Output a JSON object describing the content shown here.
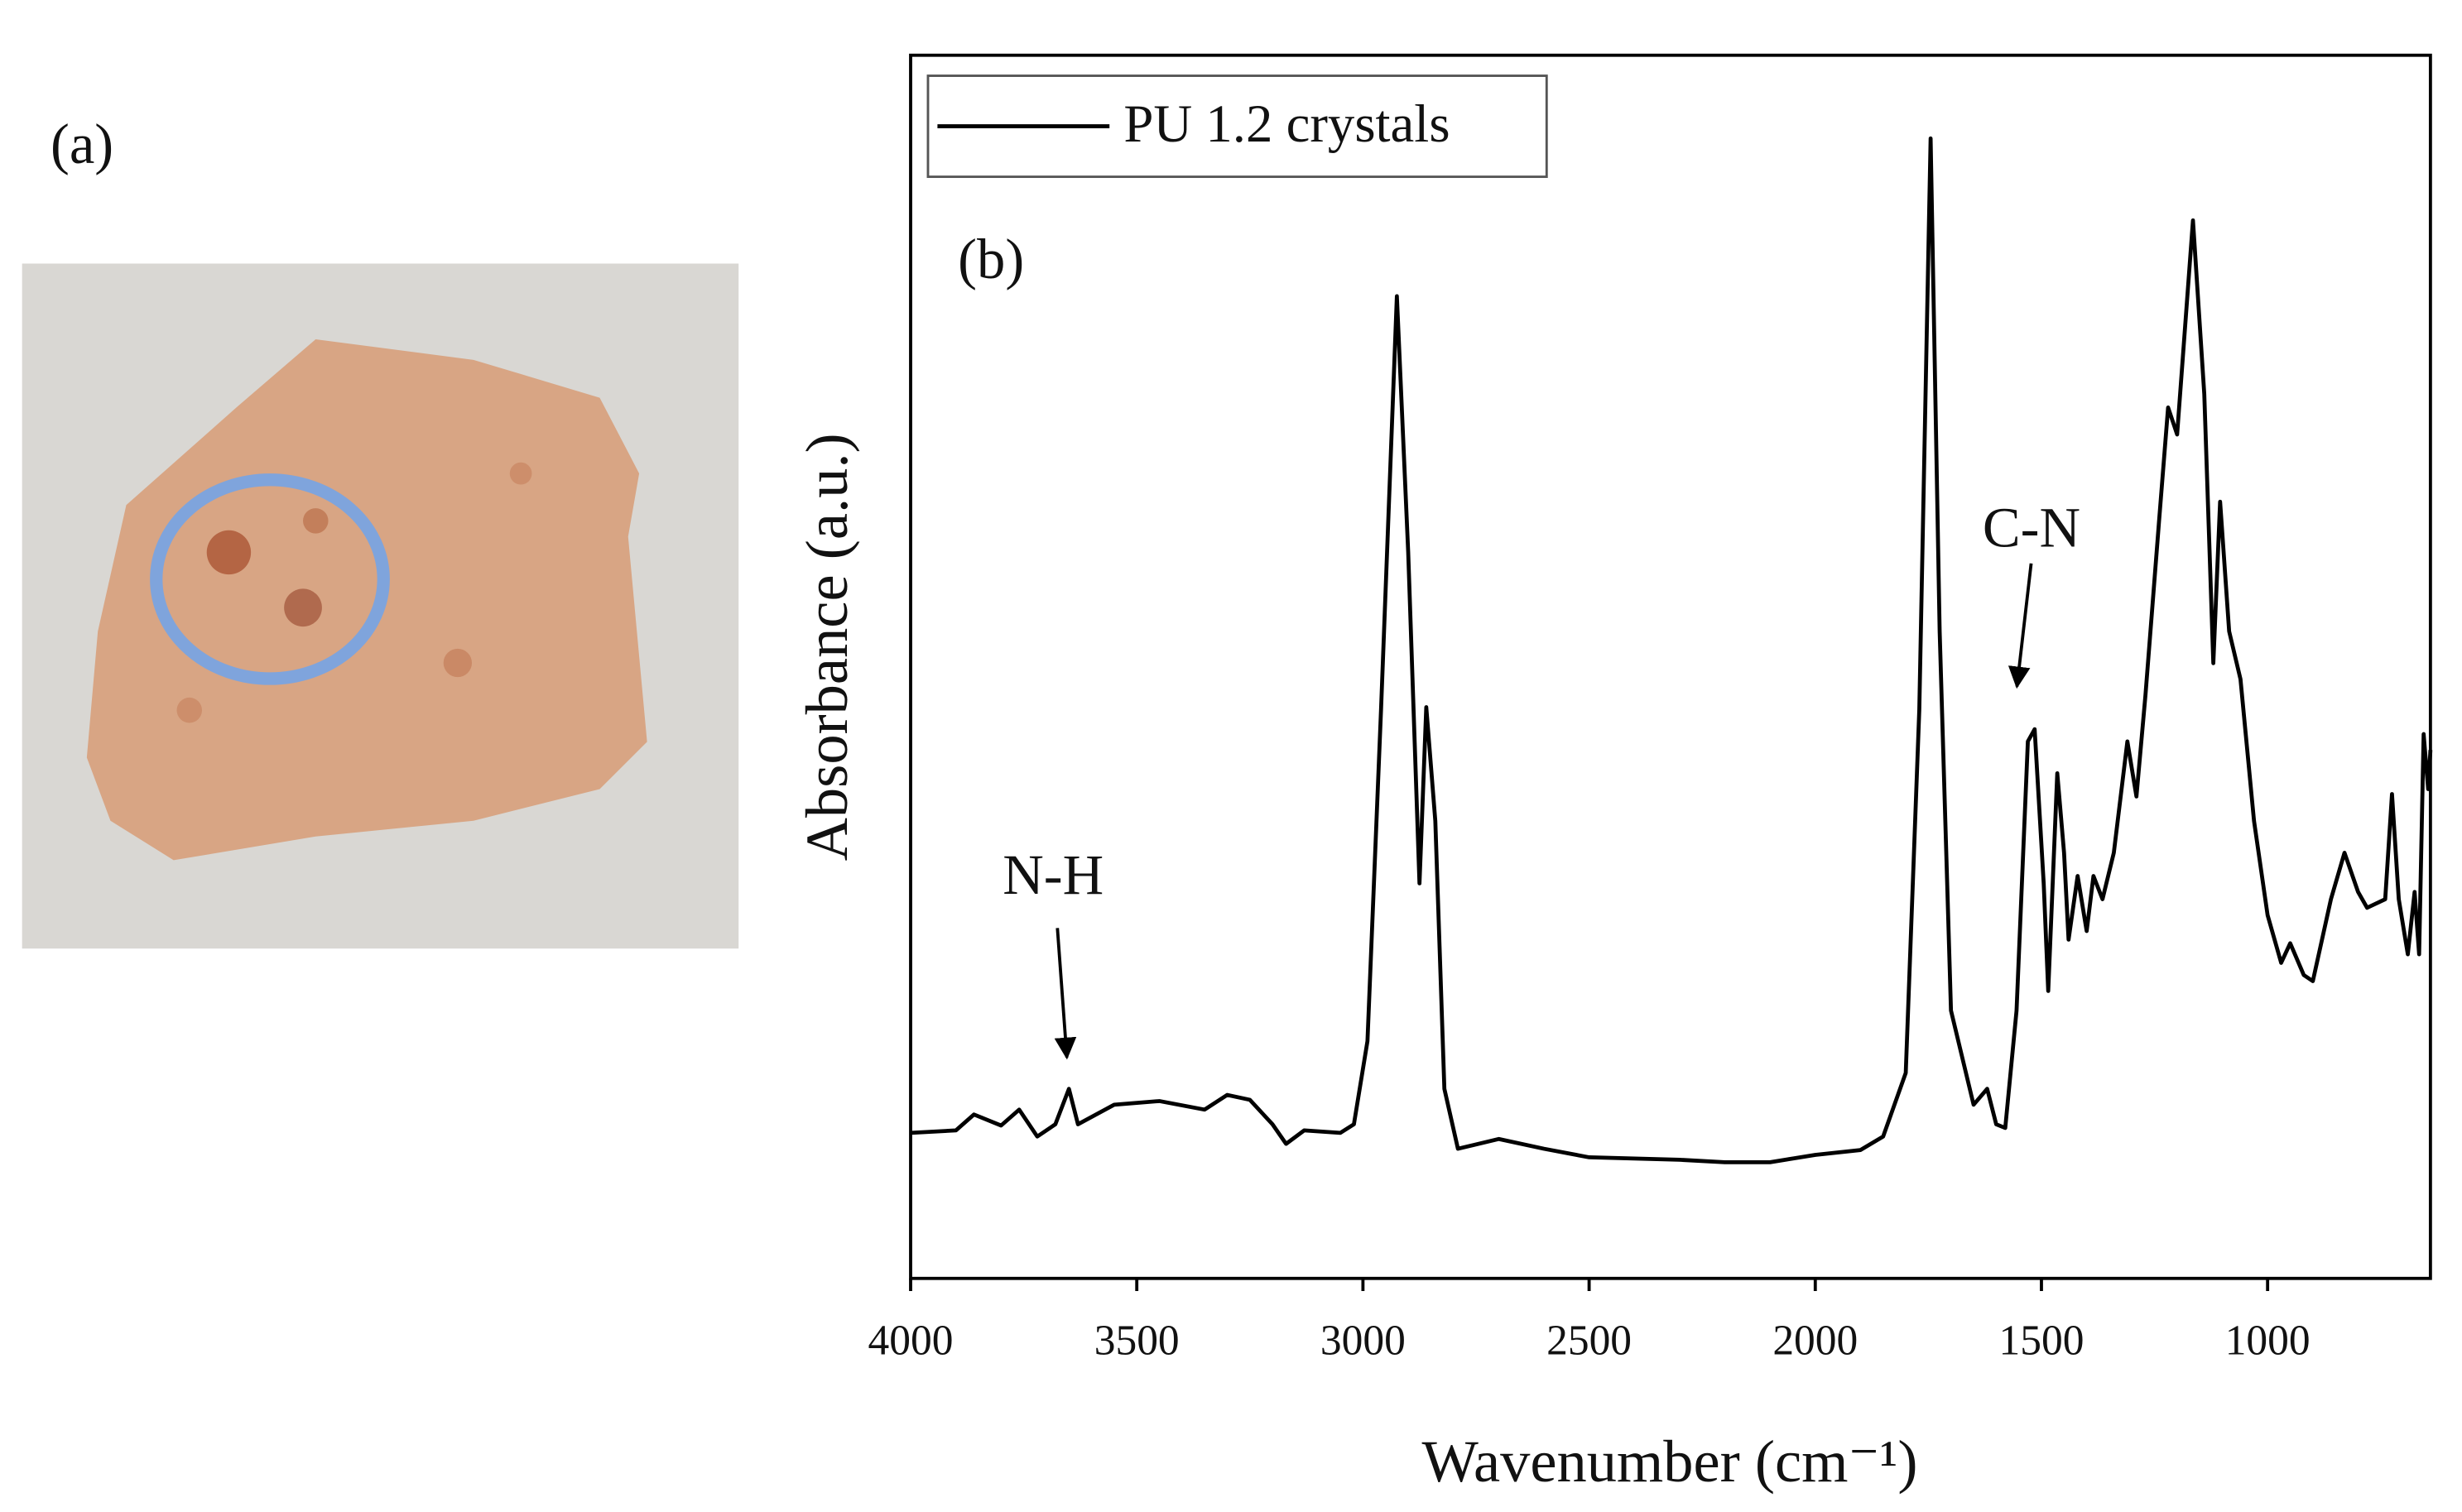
{
  "chart_data": {
    "type": "line",
    "panel_a_label": "(a)",
    "panel_b_label": "(b)",
    "xlabel": "Wavenumber (cm⁻¹)",
    "ylabel": "Absorbance (a.u.)",
    "xlim": [
      4000,
      640
    ],
    "ylim": [
      0,
      100
    ],
    "xticks": [
      4000,
      3500,
      3000,
      2500,
      2000,
      1500,
      1000
    ],
    "legend": "top-left",
    "annotations": [
      {
        "text": "N-H",
        "x": 3650
      },
      {
        "text": "C-N",
        "x": 1515
      }
    ],
    "x": [
      4000,
      3900,
      3860,
      3800,
      3760,
      3720,
      3680,
      3650,
      3630,
      3550,
      3450,
      3350,
      3300,
      3250,
      3200,
      3170,
      3130,
      3050,
      3020,
      2990,
      2960,
      2925,
      2900,
      2875,
      2860,
      2840,
      2820,
      2790,
      2700,
      2600,
      2500,
      2400,
      2300,
      2200,
      2100,
      2000,
      1900,
      1850,
      1800,
      1770,
      1745,
      1725,
      1700,
      1650,
      1620,
      1600,
      1580,
      1555,
      1530,
      1515,
      1495,
      1485,
      1465,
      1450,
      1440,
      1420,
      1400,
      1385,
      1365,
      1340,
      1310,
      1290,
      1270,
      1240,
      1220,
      1200,
      1165,
      1140,
      1120,
      1105,
      1085,
      1060,
      1030,
      1000,
      970,
      950,
      920,
      900,
      860,
      830,
      800,
      780,
      740,
      725,
      710,
      690,
      675,
      665,
      655,
      645,
      640
    ],
    "series": [
      {
        "name": "PU 1.2 crystals",
        "color": "#000000",
        "values": [
          11.9,
          12.1,
          13.4,
          12.5,
          13.8,
          11.6,
          12.6,
          15.5,
          12.6,
          14.2,
          14.5,
          13.8,
          15.0,
          14.6,
          12.6,
          11.0,
          12.1,
          11.9,
          12.6,
          19.4,
          46.5,
          80.3,
          59.4,
          32.3,
          46.7,
          37.4,
          15.5,
          10.6,
          11.4,
          10.6,
          9.9,
          9.8,
          9.7,
          9.5,
          9.5,
          10.1,
          10.5,
          11.6,
          16.8,
          46.5,
          93.2,
          52.9,
          21.9,
          14.2,
          15.5,
          12.6,
          12.3,
          21.9,
          43.9,
          44.9,
          32.3,
          23.5,
          41.3,
          34.8,
          27.7,
          32.9,
          28.4,
          32.9,
          31.0,
          34.8,
          43.9,
          39.4,
          47.7,
          61.9,
          71.2,
          69.0,
          86.5,
          72.3,
          50.3,
          63.5,
          52.9,
          49.0,
          37.4,
          29.7,
          25.8,
          27.4,
          24.8,
          24.3,
          31.0,
          34.8,
          31.6,
          30.3,
          31.0,
          39.6,
          31.0,
          26.5,
          31.6,
          26.5,
          44.5,
          40.0,
          43.2
        ]
      }
    ]
  }
}
